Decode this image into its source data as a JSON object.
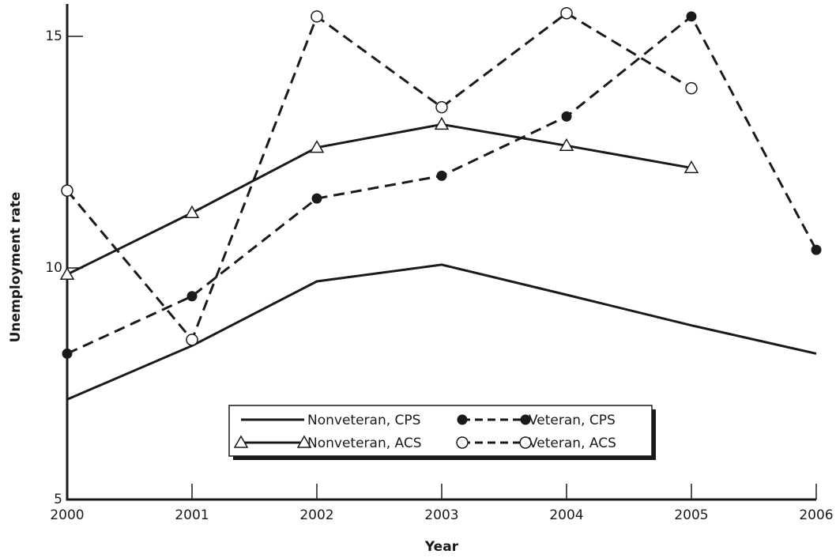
{
  "chart_data": {
    "type": "line",
    "xlabel": "Year",
    "ylabel": "Unemployment rate",
    "x": [
      2000,
      2001,
      2002,
      2003,
      2004,
      2005,
      2006
    ],
    "xlim": [
      2000,
      2006
    ],
    "xticks": [
      2000,
      2001,
      2002,
      2003,
      2004,
      2005,
      2006
    ],
    "ylim": [
      5,
      15.7
    ],
    "yticks": [
      5,
      10,
      15
    ],
    "legend": "bottom-center",
    "series": [
      {
        "name": "Nonveteran, CPS",
        "color": "#1a1a1a",
        "line": "solid",
        "marker": "none",
        "values": [
          7.16,
          8.32,
          9.71,
          10.07,
          9.42,
          8.76,
          8.15
        ]
      },
      {
        "name": "Veteran, CPS",
        "color": "#1a1a1a",
        "line": "dashed",
        "marker": "filled-circle",
        "values": [
          8.15,
          9.39,
          11.5,
          11.99,
          13.27,
          15.43,
          10.39
        ]
      },
      {
        "name": "Nonveteran, ACS",
        "color": "#1a1a1a",
        "line": "solid",
        "marker": "triangle",
        "values": [
          9.86,
          11.19,
          12.6,
          13.1,
          12.64,
          12.16,
          null
        ]
      },
      {
        "name": "Veteran, ACS",
        "color": "#1a1a1a",
        "line": "dashed",
        "marker": "open-circle",
        "values": [
          11.67,
          8.45,
          15.43,
          13.47,
          15.5,
          13.88,
          null
        ]
      }
    ]
  }
}
